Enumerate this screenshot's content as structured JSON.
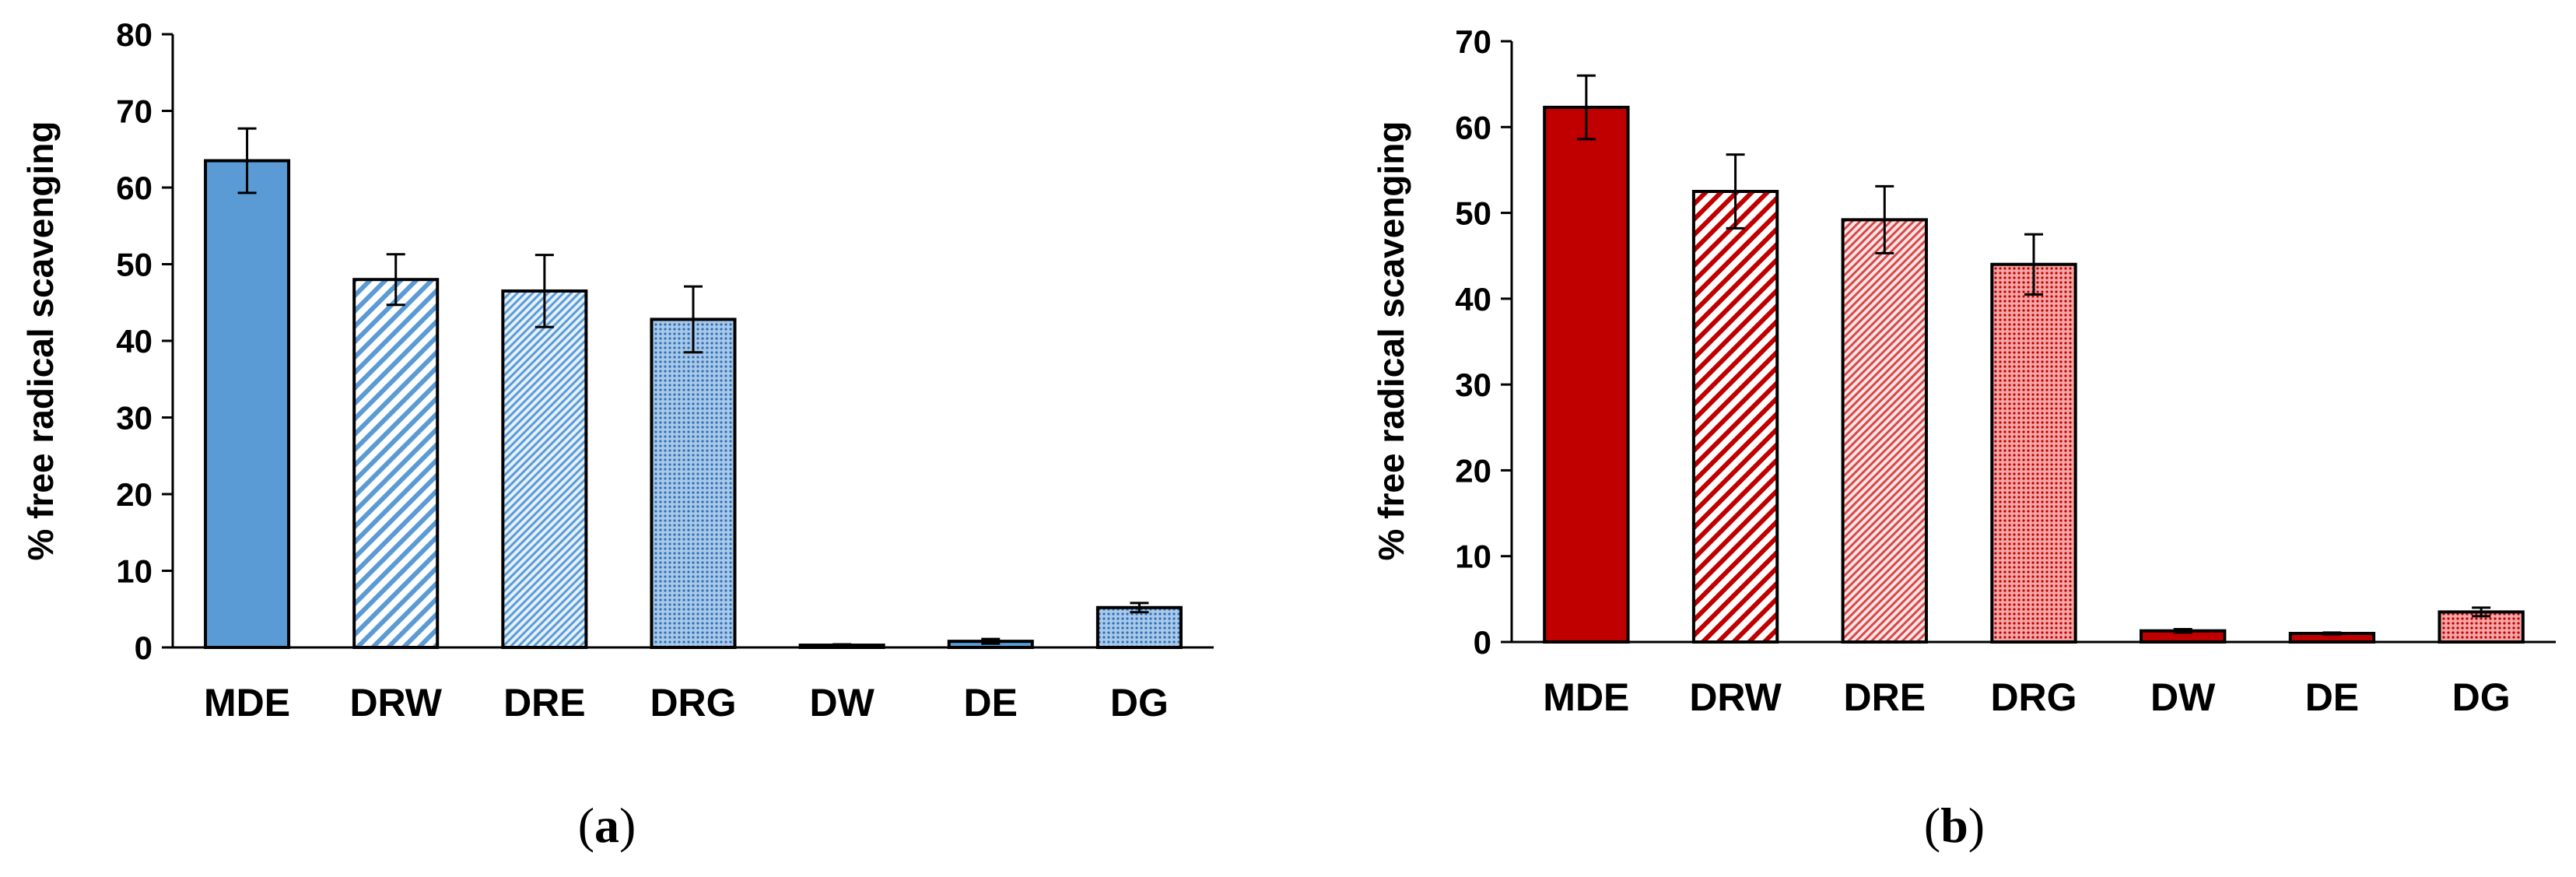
{
  "colors": {
    "blue_fill": "#5b9bd5",
    "blue_light": "#e4f0fa",
    "red_fill": "#c00000",
    "red_light": "#fbe4e4",
    "axis": "#000000"
  },
  "chart_data": [
    {
      "type": "bar",
      "panel": "(a)",
      "panel_parts": {
        "open": "(",
        "letter": "a",
        "close": ")"
      },
      "ylabel": "% free radical scavenging",
      "xlabel": "",
      "categories": [
        "MDE",
        "DRW",
        "DRE",
        "DRG",
        "DW",
        "DE",
        "DG"
      ],
      "values": [
        63.5,
        48,
        46.5,
        42.8,
        0.3,
        0.8,
        5.2
      ],
      "errors": [
        4.2,
        3.3,
        4.7,
        4.3,
        0.1,
        0.3,
        0.6
      ],
      "patterns": [
        "solid",
        "wide-diagonal",
        "fine-diagonal",
        "dots",
        "solid",
        "solid",
        "dots"
      ],
      "ylim": [
        0,
        80
      ],
      "yticks": [
        "0",
        "10",
        "20",
        "30",
        "40",
        "50",
        "60",
        "70",
        "80"
      ],
      "grid": false,
      "color": "#5b9bd5"
    },
    {
      "type": "bar",
      "panel": "(b)",
      "panel_parts": {
        "open": "(",
        "letter": "b",
        "close": ")"
      },
      "ylabel": "% free radical scavenging",
      "xlabel": "",
      "categories": [
        "MDE",
        "DRW",
        "DRE",
        "DRG",
        "DW",
        "DE",
        "DG"
      ],
      "values": [
        62.3,
        52.5,
        49.2,
        44,
        1.3,
        1,
        3.5
      ],
      "errors": [
        3.7,
        4.3,
        3.9,
        3.5,
        0.2,
        0.1,
        0.5
      ],
      "patterns": [
        "solid",
        "wide-diagonal",
        "fine-diagonal",
        "dots",
        "solid",
        "solid",
        "dots"
      ],
      "ylim": [
        0,
        70
      ],
      "yticks": [
        "0",
        "10",
        "20",
        "30",
        "40",
        "50",
        "60",
        "70"
      ],
      "grid": false,
      "color": "#c00000"
    }
  ]
}
